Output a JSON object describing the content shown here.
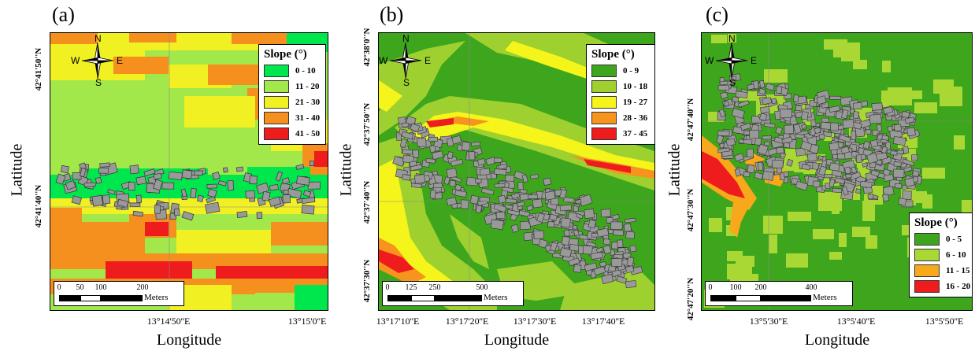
{
  "common": {
    "x_axis_label": "Longitude",
    "y_axis_label": "Latitude",
    "scale_units": "Meters",
    "legend_title": "Slope (°)",
    "compass": {
      "north": "N",
      "south": "S",
      "east": "E",
      "west": "W"
    }
  },
  "panels": [
    {
      "letter": "(a)",
      "y_ticks": [
        "42°41'50''N",
        "42°41'40''N"
      ],
      "x_ticks": [
        "13°14'50''E",
        "13°15'0''E"
      ],
      "scale_ticks": [
        "0",
        "50",
        "100",
        "200"
      ],
      "legend": [
        {
          "label": "0 - 10",
          "color": "#00e64d"
        },
        {
          "label": "11 - 20",
          "color": "#a3e84a"
        },
        {
          "label": "21 - 30",
          "color": "#f0f023"
        },
        {
          "label": "31 - 40",
          "color": "#f5901e"
        },
        {
          "label": "41 - 50",
          "color": "#ee1c1c"
        }
      ]
    },
    {
      "letter": "(b)",
      "y_ticks": [
        "42°38'0''N",
        "42°37'50''N",
        "42°37'40''N",
        "42°37'30''N"
      ],
      "x_ticks": [
        "13°17'10''E",
        "13°17'20''E",
        "13°17'30''E",
        "13°17'40''E"
      ],
      "scale_ticks": [
        "0",
        "125",
        "250",
        "500"
      ],
      "legend": [
        {
          "label": "0 - 9",
          "color": "#3ea61d"
        },
        {
          "label": "10 - 18",
          "color": "#9ed12f"
        },
        {
          "label": "19 - 27",
          "color": "#f5f51b"
        },
        {
          "label": "28 - 36",
          "color": "#f7941d"
        },
        {
          "label": "37 - 45",
          "color": "#ee1c1c"
        }
      ]
    },
    {
      "letter": "(c)",
      "y_ticks": [
        "42°47'40''N",
        "42°47'30''N",
        "42°47'20''N"
      ],
      "x_ticks": [
        "13°5'30''E",
        "13°5'40''E",
        "13°5'50''E"
      ],
      "scale_ticks": [
        "0",
        "100",
        "200",
        "400"
      ],
      "legend": [
        {
          "label": "0 - 5",
          "color": "#3ea61d"
        },
        {
          "label": "6 - 10",
          "color": "#a9d835"
        },
        {
          "label": "11 - 15",
          "color": "#f7a81b"
        },
        {
          "label": "16 - 20",
          "color": "#ee1c1c"
        }
      ]
    }
  ]
}
